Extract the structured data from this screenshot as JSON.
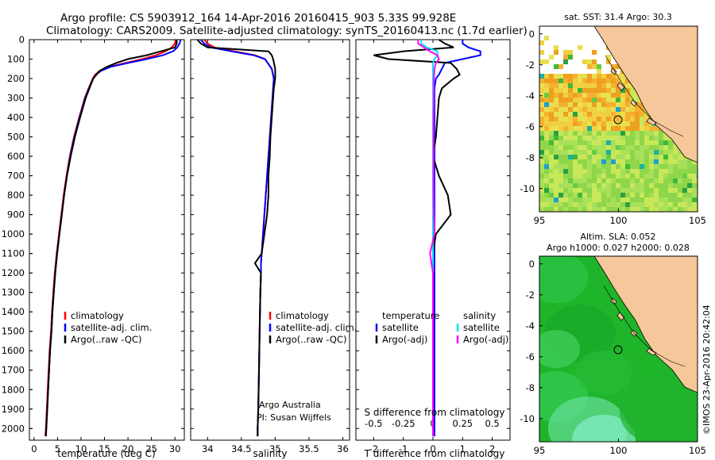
{
  "header": {
    "line1": "Argo profile: CS 5903912_164 14-Apr-2016 20160415_903 5.33S 99.928E",
    "line2": "Climatology: CARS2009. Satellite-adjusted climatology: synTS_20160413.nc (1.7d earlier)"
  },
  "colors": {
    "climatology": "#ff0000",
    "satellite": "#0000ff",
    "argo": "#000000",
    "satellite_sal": "#00e5ee",
    "argo_sal": "#ff00ff",
    "land": "#f5c79a",
    "sea_dark": "#1aa830"
  },
  "depth_axis": {
    "ticks": [
      "0",
      "100",
      "200",
      "300",
      "400",
      "500",
      "600",
      "700",
      "800",
      "900",
      "1000",
      "1100",
      "1200",
      "1300",
      "1400",
      "1500",
      "1600",
      "1700",
      "1800",
      "1900",
      "2000"
    ]
  },
  "chart_data": [
    {
      "type": "line",
      "panel": "temperature",
      "xlabel": "temperature (deg C)",
      "ylabel": "depth",
      "xlim": [
        -1,
        32
      ],
      "ylim": [
        2060,
        0
      ],
      "xticks": [
        "0",
        "5",
        "10",
        "15",
        "20",
        "25",
        "30"
      ],
      "xtick_values": [
        0,
        5,
        10,
        15,
        20,
        25,
        30
      ],
      "legend": [
        "climatology",
        "satellite-adj. clim.",
        "Argo(..raw -QC)"
      ],
      "depth": [
        0,
        20,
        40,
        60,
        80,
        100,
        120,
        140,
        160,
        180,
        200,
        250,
        300,
        400,
        500,
        600,
        700,
        800,
        900,
        1000,
        1100,
        1200,
        1300,
        1400,
        1500,
        1600,
        1700,
        1800,
        1900,
        2000,
        2040
      ],
      "series": [
        {
          "name": "climatology",
          "values": [
            30.2,
            30.0,
            29.3,
            28.0,
            26.0,
            23.0,
            19.5,
            16.0,
            14.0,
            13.0,
            12.5,
            11.6,
            10.8,
            9.6,
            8.5,
            7.6,
            6.9,
            6.3,
            5.8,
            5.3,
            4.8,
            4.4,
            4.1,
            3.8,
            3.6,
            3.3,
            3.1,
            2.9,
            2.7,
            2.5,
            2.4
          ]
        },
        {
          "name": "satellite-adj. clim.",
          "values": [
            31.2,
            31.0,
            30.5,
            29.6,
            27.5,
            24.0,
            20.0,
            16.3,
            14.3,
            13.2,
            12.6,
            11.7,
            10.9,
            9.7,
            8.6,
            7.7,
            7.0,
            6.4,
            5.9,
            5.4,
            4.9,
            4.5,
            4.2,
            3.9,
            3.7,
            3.4,
            3.2,
            3.0,
            2.8,
            2.6,
            2.5
          ]
        },
        {
          "name": "Argo(..raw -QC)",
          "values": [
            30.4,
            30.4,
            30.0,
            27.0,
            24.0,
            20.0,
            17.5,
            15.5,
            14.0,
            13.3,
            12.6,
            11.8,
            11.0,
            9.8,
            8.7,
            7.8,
            7.0,
            6.4,
            5.9,
            5.4,
            4.9,
            4.5,
            4.2,
            3.9,
            3.7,
            3.4,
            3.2,
            3.0,
            2.8,
            2.6,
            2.5
          ]
        }
      ]
    },
    {
      "type": "line",
      "panel": "salinity",
      "xlabel": "salinity",
      "xlim": [
        33.75,
        36.1
      ],
      "ylim": [
        2060,
        0
      ],
      "xticks": [
        "34",
        "34.5",
        "35",
        "35.5",
        "36"
      ],
      "xtick_values": [
        34,
        34.5,
        35,
        35.5,
        36
      ],
      "legend": [
        "climatology",
        "satellite-adj. clim.",
        "Argo(..raw -QC)"
      ],
      "credit_line1": "Argo Australia",
      "credit_line2": "PI: Susan Wijffels",
      "depth": [
        0,
        20,
        40,
        60,
        80,
        100,
        150,
        200,
        250,
        300,
        400,
        500,
        600,
        700,
        800,
        900,
        1000,
        1100,
        1150,
        1200,
        1300,
        1500,
        1700,
        1900,
        2000,
        2040
      ],
      "series": [
        {
          "name": "climatology",
          "values": [
            33.95,
            34.0,
            34.1,
            34.4,
            34.7,
            34.85,
            34.95,
            34.98,
            34.97,
            34.96,
            34.94,
            34.92,
            34.9,
            34.88,
            34.86,
            34.84,
            34.82,
            34.8,
            34.79,
            34.79,
            34.78,
            34.77,
            34.76,
            34.75,
            34.74,
            34.74
          ]
        },
        {
          "name": "satellite-adj. clim.",
          "values": [
            33.9,
            33.95,
            34.05,
            34.35,
            34.68,
            34.85,
            34.95,
            34.98,
            34.97,
            34.96,
            34.94,
            34.92,
            34.9,
            34.88,
            34.86,
            34.84,
            34.82,
            34.8,
            34.79,
            34.79,
            34.78,
            34.77,
            34.76,
            34.75,
            34.74,
            34.74
          ]
        },
        {
          "name": "Argo(..raw -QC)",
          "values": [
            33.85,
            33.9,
            34.0,
            34.9,
            34.95,
            34.97,
            35.0,
            35.0,
            34.98,
            34.97,
            34.95,
            34.93,
            34.92,
            34.9,
            34.9,
            34.88,
            34.84,
            34.8,
            34.7,
            34.79,
            34.78,
            34.77,
            34.76,
            34.75,
            34.74,
            34.74
          ]
        }
      ]
    },
    {
      "type": "line",
      "panel": "difference",
      "xlabel": "T difference from climatology",
      "xlabel_top": "S difference from climatology",
      "xlim": [
        -2.6,
        2.6
      ],
      "ylim": [
        2060,
        0
      ],
      "xticks": [
        "-2",
        "-1",
        "0",
        "1",
        "2"
      ],
      "xtick_values": [
        -2,
        -1,
        0,
        1,
        2
      ],
      "top_xticks": [
        "-0.5",
        "-0.25",
        "0",
        "0.25",
        "0.5"
      ],
      "top_xtick_values": [
        -0.5,
        -0.25,
        0,
        0.25,
        0.5
      ],
      "legend_headers": [
        "temperature",
        "salinity"
      ],
      "legend": [
        "satellite",
        "Argo(-adj)",
        "satellite",
        "Argo(-adj)"
      ],
      "depth": [
        0,
        20,
        40,
        60,
        80,
        100,
        120,
        150,
        180,
        200,
        250,
        300,
        400,
        500,
        600,
        700,
        800,
        900,
        1000,
        1100,
        1200,
        1400,
        1600,
        1800,
        2000,
        2040
      ],
      "series": [
        {
          "name": "temperature satellite",
          "values": [
            1.0,
            1.0,
            1.2,
            1.6,
            1.6,
            1.0,
            0.4,
            0.3,
            0.2,
            0.1,
            0.05,
            0.05,
            0.05,
            0.05,
            0.05,
            0.05,
            0.05,
            0.05,
            0.05,
            0.05,
            0.05,
            0.05,
            0.05,
            0.05,
            0.05,
            0.05
          ]
        },
        {
          "name": "temperature Argo(-adj)",
          "values": [
            0.2,
            0.4,
            0.7,
            -1.0,
            -2.0,
            -1.5,
            0.6,
            0.8,
            0.9,
            0.7,
            0.3,
            0.2,
            0.15,
            0.1,
            0.0,
            0.2,
            0.5,
            0.6,
            0.1,
            0.0,
            0.0,
            0.0,
            0.0,
            0.0,
            0.0,
            0.0
          ]
        },
        {
          "name": "salinity satellite",
          "values": [
            -0.4,
            -0.4,
            -0.2,
            0.15,
            0.15,
            0.05,
            0.0,
            0.0,
            0.0,
            0.0,
            0.0,
            0.0,
            0.0,
            0.0,
            0.0,
            0.0,
            0.0,
            0.0,
            0.0,
            0.0,
            0.0,
            0.0,
            0.0,
            0.0,
            0.0,
            0.0
          ]
        },
        {
          "name": "salinity Argo(-adj)",
          "values": [
            -0.5,
            -0.5,
            -0.3,
            -0.1,
            0.15,
            0.2,
            0.1,
            0.05,
            0.04,
            0.03,
            0.03,
            0.03,
            0.02,
            0.02,
            0.02,
            0.02,
            0.02,
            0.03,
            0.05,
            -0.1,
            0.0,
            0.0,
            0.0,
            0.0,
            0.0,
            0.0
          ]
        }
      ]
    }
  ],
  "map_sst": {
    "title": "sat. SST: 31.4 Argo: 30.3",
    "lon_ticks": [
      "95",
      "100",
      "105"
    ],
    "lat_ticks": [
      "0",
      "-2",
      "-4",
      "-6",
      "-8",
      "-10"
    ]
  },
  "map_sla": {
    "title_line1": "Altim. SLA: 0.052",
    "title_line2": "Argo h1000: 0.027 h2000: 0.028",
    "lon_ticks": [
      "95",
      "100",
      "105"
    ],
    "lat_ticks": [
      "0",
      "-2",
      "-4",
      "-6",
      "-8",
      "-10"
    ]
  },
  "footer_stamp": "©IMOS 23-Apr-2016 20:42:04"
}
